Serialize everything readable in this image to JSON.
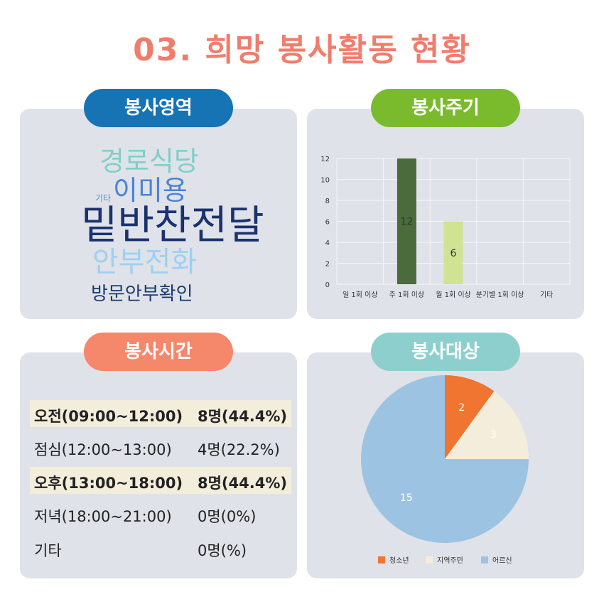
{
  "title": "03. 희망 봉사활동 현황",
  "colors": {
    "title": "#f07d6c",
    "panel_bg": "#dfe2e8",
    "pill_area": "#1673b4",
    "pill_cycle": "#7abb2e",
    "pill_time": "#f5876a",
    "pill_target": "#8dcfcc",
    "row_highlight": "#f3eedc"
  },
  "area": {
    "label": "봉사영역",
    "words": [
      "경로식당",
      "기타",
      "이미용",
      "밑반찬전달",
      "안부전화",
      "방문안부확인"
    ]
  },
  "cycle": {
    "label": "봉사주기"
  },
  "time": {
    "label": "봉사시간",
    "rows": [
      {
        "slot": "오전(09:00~12:00)",
        "count": "8명(44.4%)",
        "highlight": true
      },
      {
        "slot": "점심(12:00~13:00)",
        "count": "4명(22.2%)",
        "highlight": false
      },
      {
        "slot": "오후(13:00~18:00)",
        "count": "8명(44.4%)",
        "highlight": true
      },
      {
        "slot": "저녁(18:00~21:00)",
        "count": "0명(0%)",
        "highlight": false
      },
      {
        "slot": "기타",
        "count": "0명(%)",
        "highlight": false
      }
    ]
  },
  "target": {
    "label": "봉사대상"
  },
  "chart_data": [
    {
      "type": "bar",
      "categories": [
        "일 1회 이상",
        "주 1회 이상",
        "월 1회 이상",
        "분기별 1회 이상",
        "기타"
      ],
      "values": [
        0,
        12,
        6,
        0,
        0
      ],
      "data_labels": [
        "",
        "12",
        "6",
        "",
        ""
      ],
      "bar_colors": [
        "#4b6b3c",
        "#4b6b3c",
        "#cfe393",
        "#4b6b3c",
        "#4b6b3c"
      ],
      "yticks": [
        "0",
        "2",
        "4",
        "6",
        "8",
        "10",
        "12"
      ],
      "ylim": [
        0,
        12
      ],
      "grid": true
    },
    {
      "type": "pie",
      "labels": [
        "청소년",
        "지역주민",
        "어르신"
      ],
      "values": [
        2,
        3,
        15
      ],
      "data_labels": [
        "2",
        "3",
        "15"
      ],
      "colors": [
        "#f07530",
        "#f4eddb",
        "#9dc3e2"
      ],
      "legend": "bottom"
    }
  ]
}
